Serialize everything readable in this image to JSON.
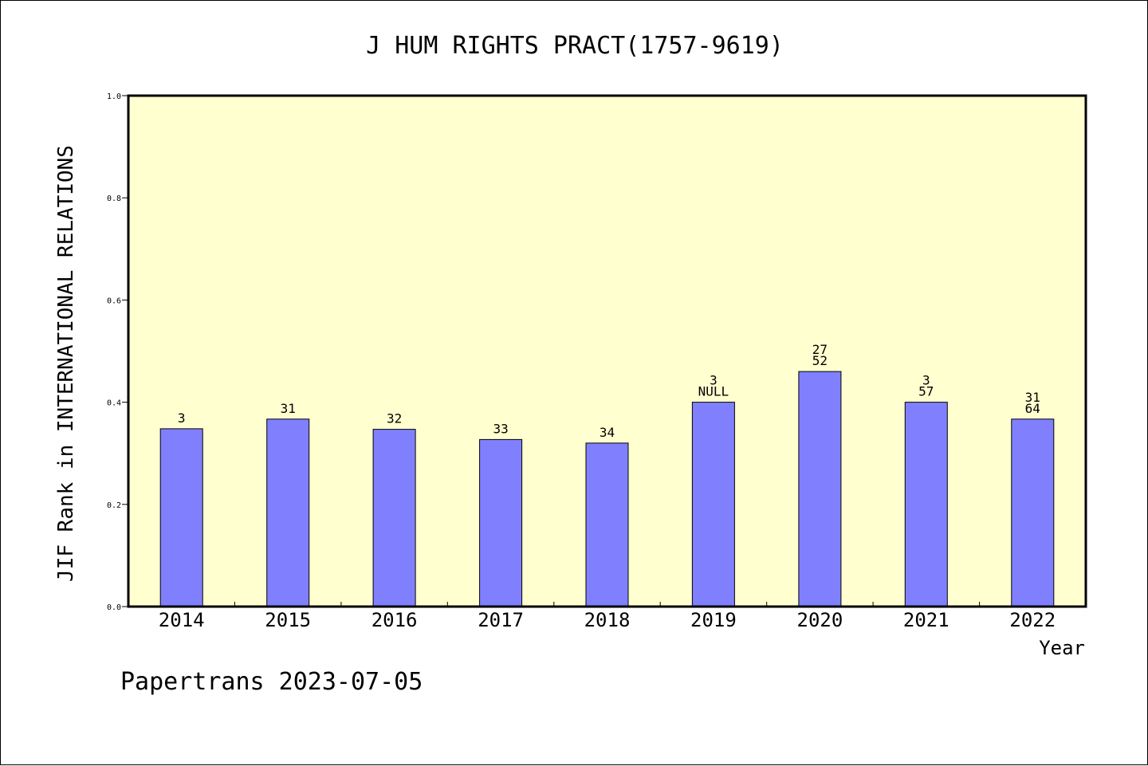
{
  "colors": {
    "plot_background": "#ffffd0",
    "bar_fill": "#8080ff",
    "bar_stroke": "#000000",
    "axis": "#000000"
  },
  "footer": "Papertrans 2023-07-05",
  "chart_data": {
    "type": "bar",
    "title": "J HUM RIGHTS PRACT(1757-9619)",
    "xlabel": "Year",
    "ylabel": "JIF Rank in INTERNATIONAL RELATIONS",
    "ylim": [
      0,
      1.0
    ],
    "yticks": [
      "0.0",
      "0.2",
      "0.4",
      "0.6",
      "0.8",
      "1.0"
    ],
    "grid": false,
    "categories": [
      "2014",
      "2015",
      "2016",
      "2017",
      "2018",
      "2019",
      "2020",
      "2021",
      "2022"
    ],
    "values": [
      0.348,
      0.367,
      0.347,
      0.327,
      0.32,
      0.4,
      0.46,
      0.4,
      0.367
    ],
    "bar_labels": [
      [
        "3"
      ],
      [
        "31"
      ],
      [
        "32"
      ],
      [
        "33"
      ],
      [
        "34"
      ],
      [
        "3",
        "NULL"
      ],
      [
        "27",
        "52"
      ],
      [
        "3",
        "57"
      ],
      [
        "31",
        "64"
      ]
    ]
  }
}
